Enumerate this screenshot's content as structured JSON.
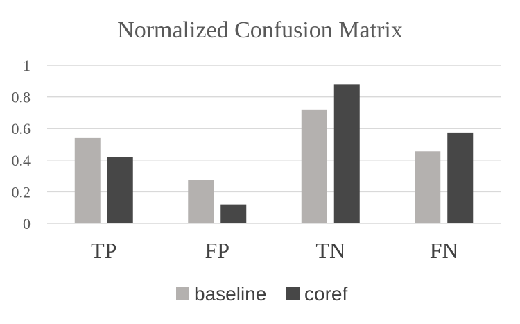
{
  "chart_data": {
    "type": "bar",
    "title": "Normalized Confusion Matrix",
    "xlabel": "",
    "ylabel": "",
    "categories": [
      "TP",
      "FP",
      "TN",
      "FN"
    ],
    "series": [
      {
        "name": "baseline",
        "color": "#b4b1af",
        "values": [
          0.54,
          0.275,
          0.72,
          0.455
        ]
      },
      {
        "name": "coref",
        "color": "#474747",
        "values": [
          0.42,
          0.12,
          0.88,
          0.575
        ]
      }
    ],
    "ylim": [
      0,
      1
    ],
    "yticks": [
      0,
      0.2,
      0.4,
      0.6,
      0.8,
      1
    ],
    "ytick_labels": [
      "0",
      "0.2",
      "0.4",
      "0.6",
      "0.8",
      "1"
    ],
    "grid": true,
    "grid_color": "#d9d9d9",
    "legend_position": "bottom"
  }
}
